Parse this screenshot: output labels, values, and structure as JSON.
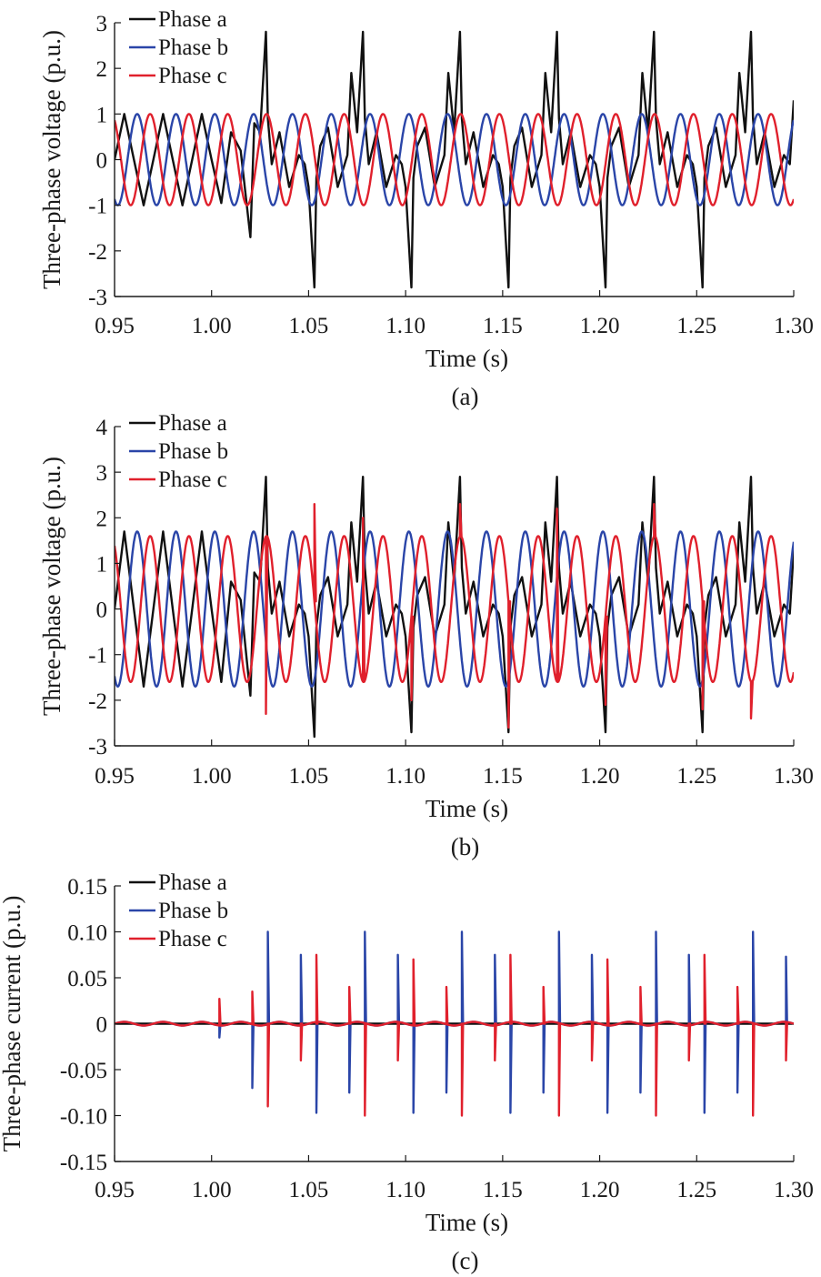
{
  "chart_data": [
    {
      "type": "line",
      "caption": "(a)",
      "xlabel": "Time (s)",
      "ylabel": "Three-phase voltage (p.u.)",
      "xlim": [
        0.95,
        1.3
      ],
      "ylim": [
        -3,
        3
      ],
      "xticks": [
        "0.95",
        "1.00",
        "1.05",
        "1.10",
        "1.15",
        "1.20",
        "1.25",
        "1.30"
      ],
      "yticks": [
        "3",
        "2",
        "1",
        "0",
        "-1",
        "-2",
        "-3"
      ],
      "legend_position": "top-left",
      "grid": false,
      "series": [
        {
          "name": "Phase a",
          "color": "#111111",
          "x": [
            0.95,
            0.955,
            0.96,
            0.965,
            0.97,
            0.975,
            0.98,
            0.985,
            0.99,
            0.995,
            1.0,
            1.005,
            1.01,
            1.015,
            1.02,
            1.022,
            1.025,
            1.028,
            1.029,
            1.031,
            1.035,
            1.04,
            1.045,
            1.048,
            1.05,
            1.053,
            1.054,
            1.056,
            1.06,
            1.065,
            1.07,
            1.072,
            1.075,
            1.078,
            1.079,
            1.081,
            1.085,
            1.09,
            1.095,
            1.098,
            1.1,
            1.103,
            1.104,
            1.106,
            1.11,
            1.115,
            1.12,
            1.122,
            1.125,
            1.128,
            1.129,
            1.131,
            1.135,
            1.14,
            1.145,
            1.148,
            1.15,
            1.153,
            1.154,
            1.156,
            1.16,
            1.165,
            1.17,
            1.172,
            1.175,
            1.178,
            1.179,
            1.181,
            1.185,
            1.19,
            1.195,
            1.198,
            1.2,
            1.203,
            1.204,
            1.206,
            1.21,
            1.215,
            1.22,
            1.222,
            1.225,
            1.228,
            1.229,
            1.231,
            1.235,
            1.24,
            1.245,
            1.248,
            1.25,
            1.253,
            1.254,
            1.256,
            1.26,
            1.265,
            1.27,
            1.272,
            1.275,
            1.278,
            1.279,
            1.281,
            1.285,
            1.29,
            1.295,
            1.298,
            1.3
          ],
          "y": [
            0,
            1.0,
            0,
            -1.0,
            0,
            1.0,
            0,
            -1.0,
            0,
            1.0,
            0,
            -0.95,
            0.6,
            0.2,
            -1.7,
            0.8,
            0.6,
            2.8,
            0.9,
            -0.1,
            0.6,
            -0.6,
            0.1,
            -0.1,
            -0.6,
            -2.8,
            -0.4,
            0.3,
            0.7,
            -0.6,
            0.1,
            1.9,
            0.6,
            2.8,
            0.9,
            -0.1,
            0.6,
            -0.6,
            0.1,
            -0.1,
            -0.6,
            -2.8,
            -0.4,
            0.3,
            0.7,
            -0.6,
            0.1,
            1.9,
            0.6,
            2.8,
            0.9,
            -0.1,
            0.6,
            -0.6,
            0.1,
            -0.1,
            -0.6,
            -2.8,
            -0.4,
            0.3,
            0.7,
            -0.6,
            0.1,
            1.9,
            0.6,
            2.8,
            0.9,
            -0.1,
            0.6,
            -0.6,
            0.1,
            -0.1,
            -0.6,
            -2.8,
            -0.4,
            0.3,
            0.7,
            -0.6,
            0.1,
            1.9,
            0.6,
            2.8,
            0.9,
            -0.1,
            0.6,
            -0.6,
            0.1,
            -0.1,
            -0.6,
            -2.8,
            -0.4,
            0.3,
            0.7,
            -0.6,
            0.1,
            1.9,
            0.6,
            2.8,
            0.9,
            -0.1,
            0.6,
            -0.6,
            0.1,
            -0.1,
            1.3
          ]
        },
        {
          "name": "Phase b",
          "color": "#2a45a8",
          "frequency_hz": 50,
          "amplitude": 1.0,
          "phase_deg": -120
        },
        {
          "name": "Phase c",
          "color": "#e0202c",
          "frequency_hz": 50,
          "amplitude": 1.0,
          "phase_deg": 120
        }
      ]
    },
    {
      "type": "line",
      "caption": "(b)",
      "xlabel": "Time (s)",
      "ylabel": "Three-phase voltage (p.u.)",
      "xlim": [
        0.95,
        1.3
      ],
      "ylim": [
        -3,
        4
      ],
      "xticks": [
        "0.95",
        "1.00",
        "1.05",
        "1.10",
        "1.15",
        "1.20",
        "1.25",
        "1.30"
      ],
      "yticks": [
        "4",
        "3",
        "2",
        "1",
        "0",
        "-1",
        "-2",
        "-3"
      ],
      "legend_position": "top-left",
      "grid": false,
      "series": [
        {
          "name": "Phase a",
          "color": "#111111",
          "x": [
            0.95,
            0.955,
            0.96,
            0.965,
            0.97,
            0.975,
            0.98,
            0.985,
            0.99,
            0.995,
            1.0,
            1.005,
            1.01,
            1.015,
            1.02,
            1.022,
            1.025,
            1.028,
            1.029,
            1.031,
            1.035,
            1.04,
            1.045,
            1.048,
            1.05,
            1.053,
            1.054,
            1.056,
            1.06,
            1.065,
            1.07,
            1.072,
            1.075,
            1.078,
            1.079,
            1.081,
            1.085,
            1.09,
            1.095,
            1.098,
            1.1,
            1.103,
            1.104,
            1.106,
            1.11,
            1.115,
            1.12,
            1.122,
            1.125,
            1.128,
            1.129,
            1.131,
            1.135,
            1.14,
            1.145,
            1.148,
            1.15,
            1.153,
            1.154,
            1.156,
            1.16,
            1.165,
            1.17,
            1.172,
            1.175,
            1.178,
            1.179,
            1.181,
            1.185,
            1.19,
            1.195,
            1.198,
            1.2,
            1.203,
            1.204,
            1.206,
            1.21,
            1.215,
            1.22,
            1.222,
            1.225,
            1.228,
            1.229,
            1.231,
            1.235,
            1.24,
            1.245,
            1.248,
            1.25,
            1.253,
            1.254,
            1.256,
            1.26,
            1.265,
            1.27,
            1.272,
            1.275,
            1.278,
            1.279,
            1.281,
            1.285,
            1.29,
            1.295,
            1.298,
            1.3
          ],
          "y": [
            0,
            1.7,
            0,
            -1.7,
            0,
            1.7,
            0,
            -1.7,
            0,
            1.7,
            0,
            -1.6,
            0.6,
            0.2,
            -1.9,
            0.8,
            0.6,
            2.9,
            0.9,
            -0.1,
            0.6,
            -0.6,
            0.1,
            -0.1,
            -0.6,
            -2.8,
            -0.4,
            0.3,
            0.7,
            -0.6,
            0.1,
            1.9,
            0.6,
            2.9,
            0.9,
            -0.1,
            0.6,
            -0.6,
            0.1,
            -0.1,
            -0.6,
            -2.7,
            -0.4,
            0.3,
            0.7,
            -0.6,
            0.1,
            1.9,
            0.6,
            2.9,
            0.9,
            -0.1,
            0.6,
            -0.6,
            0.1,
            -0.1,
            -0.6,
            -2.7,
            -0.4,
            0.3,
            0.7,
            -0.6,
            0.1,
            1.9,
            0.6,
            2.9,
            0.9,
            -0.1,
            0.6,
            -0.6,
            0.1,
            -0.1,
            -0.6,
            -2.7,
            -0.4,
            0.3,
            0.7,
            -0.6,
            0.1,
            1.9,
            0.6,
            2.9,
            0.9,
            -0.1,
            0.6,
            -0.6,
            0.1,
            -0.1,
            -0.6,
            -2.7,
            -0.4,
            0.3,
            0.7,
            -0.6,
            0.1,
            1.9,
            0.6,
            2.9,
            0.9,
            -0.1,
            0.6,
            -0.6,
            0.1,
            -0.1,
            1.3
          ]
        },
        {
          "name": "Phase b",
          "color": "#2a45a8",
          "frequency_hz": 50,
          "amplitude": 1.7,
          "phase_deg": -120
        },
        {
          "name": "Phase c",
          "color": "#e0202c",
          "frequency_hz": 50,
          "amplitude": 1.6,
          "phase_deg": 120,
          "spike_times": [
            1.028,
            1.053,
            1.078,
            1.103,
            1.128,
            1.153,
            1.178,
            1.203,
            1.228,
            1.253,
            1.278
          ],
          "spike_values": [
            -2.3,
            2.3,
            2.0,
            -2.0,
            2.3,
            -2.6,
            2.2,
            -2.1,
            2.3,
            -2.2,
            -2.4
          ]
        }
      ]
    },
    {
      "type": "line",
      "caption": "(c)",
      "xlabel": "Time (s)",
      "ylabel": "Three-phase current (p.u.)",
      "xlim": [
        0.95,
        1.3
      ],
      "ylim": [
        -0.15,
        0.15
      ],
      "xticks": [
        "0.95",
        "1.00",
        "1.05",
        "1.10",
        "1.15",
        "1.20",
        "1.25",
        "1.30"
      ],
      "yticks": [
        "0.15",
        "0.10",
        "0.05",
        "0",
        "-0.05",
        "-0.10",
        "-0.15"
      ],
      "legend_position": "top-left",
      "grid": false,
      "series": [
        {
          "name": "Phase a",
          "color": "#111111",
          "x": [
            0.95,
            1.0,
            1.005,
            1.3
          ],
          "y": [
            0.0,
            0.0,
            0.0,
            0.0
          ]
        },
        {
          "name": "Phase b",
          "color": "#2a45a8",
          "spike_times": [
            1.004,
            1.021,
            1.029,
            1.046,
            1.054,
            1.071,
            1.079,
            1.096,
            1.104,
            1.121,
            1.129,
            1.146,
            1.154,
            1.171,
            1.179,
            1.196,
            1.204,
            1.221,
            1.229,
            1.246,
            1.254,
            1.271,
            1.279,
            1.296
          ],
          "spike_values": [
            -0.015,
            -0.07,
            0.1,
            0.075,
            -0.097,
            -0.075,
            0.1,
            0.075,
            -0.097,
            -0.075,
            0.1,
            0.075,
            -0.097,
            -0.075,
            0.1,
            0.075,
            -0.097,
            -0.075,
            0.1,
            0.075,
            -0.097,
            -0.075,
            0.1,
            0.073
          ]
        },
        {
          "name": "Phase c",
          "color": "#e0202c",
          "spike_times": [
            1.004,
            1.021,
            1.029,
            1.046,
            1.054,
            1.071,
            1.079,
            1.096,
            1.104,
            1.121,
            1.129,
            1.146,
            1.154,
            1.171,
            1.179,
            1.196,
            1.204,
            1.221,
            1.229,
            1.246,
            1.254,
            1.271,
            1.279,
            1.296
          ],
          "spike_values": [
            0.027,
            0.035,
            -0.09,
            -0.04,
            0.075,
            0.04,
            -0.1,
            -0.04,
            0.07,
            0.04,
            -0.1,
            -0.04,
            0.075,
            0.04,
            -0.1,
            -0.04,
            0.07,
            0.04,
            -0.1,
            -0.04,
            0.075,
            0.04,
            -0.1,
            -0.04
          ]
        }
      ]
    }
  ]
}
